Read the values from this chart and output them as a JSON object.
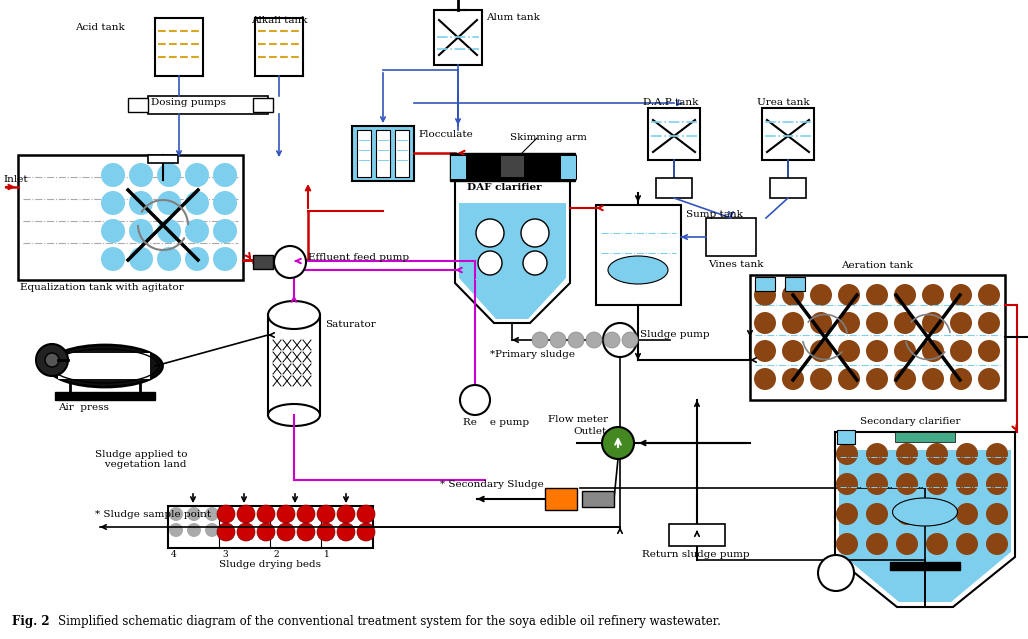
{
  "bg_color": "#ffffff",
  "red": "#cc0000",
  "blue": "#3355bb",
  "magenta": "#cc00cc",
  "cyan": "#7ecfed",
  "orange_gold": "#DAA520",
  "brown": "#8B4513",
  "dark_gray": "#444444",
  "light_gray": "#aaaaaa",
  "labels": {
    "acid_tank": "Acid tank",
    "alkali_tank": "Alkali tank",
    "alum_tank": "Alum tank",
    "dap_tank": "D.A.P tank",
    "urea_tank": "Urea tank",
    "dosing_pumps": "Dosing pumps",
    "flocculate": "Flocculate",
    "inlet": "Inlet",
    "equalization": "Equalization tank with agitator",
    "effluent_feed": "Effluent feed pump",
    "saturator": "Saturator",
    "air_compress": "Air  press",
    "daf_clarifier": "DAF clarifier",
    "skimming_arm": "Skimming arm",
    "sump_tank": "Sump tank",
    "vines_tank": "Vines tank",
    "aeration_tank": "Aeration tank",
    "secondary_clarifier": "Secondary clarifier",
    "sludge_pump": "Sludge pump",
    "primary_sludge": "*Primary sludge",
    "recycle_pump": "Re    e pump",
    "flow_meter": "Flow meter",
    "outlet": "Outlet",
    "secondary_sludge": "* Secondary Sludge",
    "return_sludge": "Return sludge pump",
    "sludge_drying": "Sludge drying beds",
    "sludge_applied": "Sludge applied to\n   vegetation land",
    "sludge_sample": "* Sludge sample point",
    "fig_caption_bold": "Fig. 2",
    "fig_caption_rest": "Simplified schematic diagram of the conventional treatment system for the soya edible oil refinery wastewater."
  }
}
